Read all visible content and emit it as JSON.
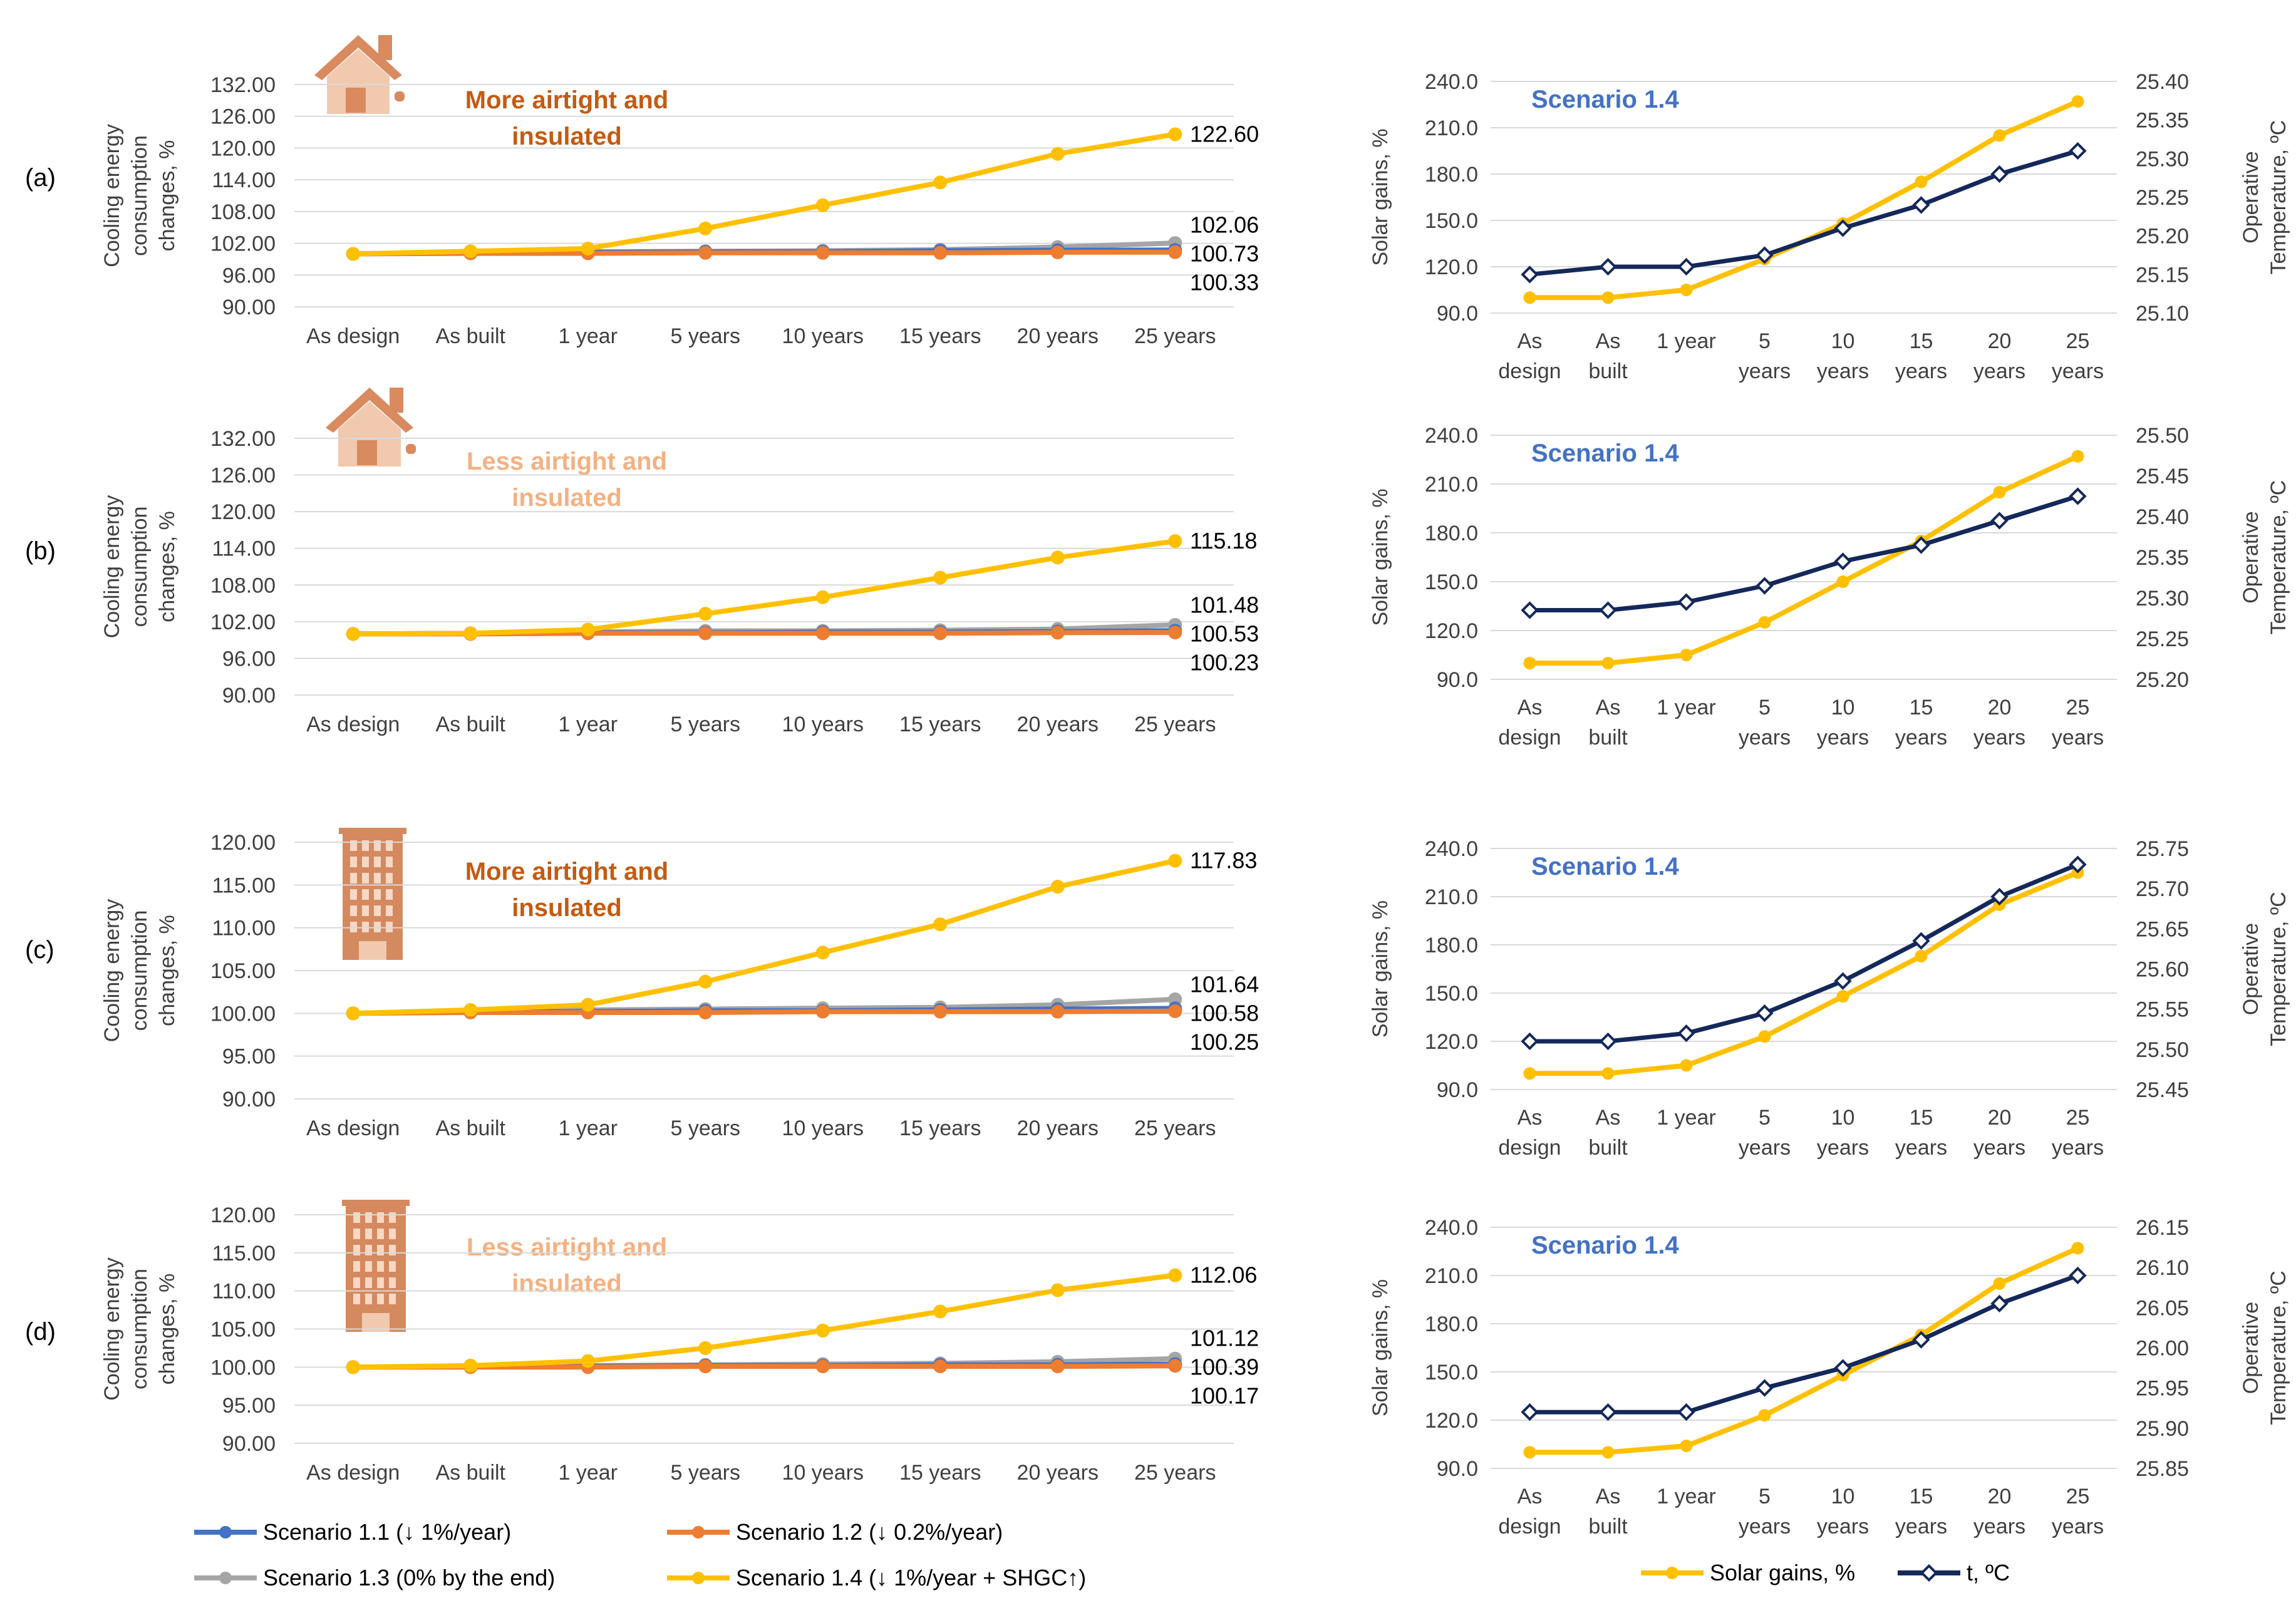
{
  "colors": {
    "s11": "#4472C4",
    "s12": "#ED7D31",
    "s13": "#A5A5A5",
    "s14": "#FFC000",
    "temp": "#14285A",
    "grid": "#D9D9D9",
    "axis_text": "#404040",
    "label_orange": "#C55A11",
    "label_light": "#F4B183",
    "scenario_blue": "#4472C4",
    "house_icon": "#D98A5F",
    "building_icon": "#D4895F"
  },
  "categories": [
    "As design",
    "As built",
    "1 year",
    "5 years",
    "10 years",
    "15 years",
    "20 years",
    "25 years"
  ],
  "right_categories": [
    [
      "As",
      "design"
    ],
    [
      "As",
      "built"
    ],
    [
      "1 year"
    ],
    [
      "5",
      "years"
    ],
    [
      "10",
      "years"
    ],
    [
      "15",
      "years"
    ],
    [
      "20",
      "years"
    ],
    [
      "25",
      "years"
    ]
  ],
  "panels": [
    {
      "id": "a",
      "label": "(a)",
      "icon": "house-icon",
      "note": [
        "More airtight and",
        "insulated"
      ],
      "note_color": "label_orange"
    },
    {
      "id": "b",
      "label": "(b)",
      "icon": "house-icon",
      "note": [
        "Less airtight and",
        "insulated"
      ],
      "note_color": "label_light"
    },
    {
      "id": "c",
      "label": "(c)",
      "icon": "building-icon",
      "note": [
        "More airtight and",
        "insulated"
      ],
      "note_color": "label_orange"
    },
    {
      "id": "d",
      "label": "(d)",
      "icon": "building-icon",
      "note": [
        "Less airtight and",
        "insulated"
      ],
      "note_color": "label_light"
    }
  ],
  "chart_data": [
    {
      "id": "left-a",
      "type": "line",
      "panel": "a",
      "ylabel": [
        "Cooling energy",
        "consumption",
        "changes, %"
      ],
      "yticks": [
        "90.00",
        "96.00",
        "102.00",
        "108.00",
        "114.00",
        "120.00",
        "126.00",
        "132.00"
      ],
      "ylim": [
        90,
        132
      ],
      "series": [
        {
          "name": "Scenario 1.1 (↓ 1%/year)",
          "color": "s11",
          "values": [
            100,
            100.3,
            100.3,
            100.4,
            100.4,
            100.6,
            100.7,
            100.73
          ]
        },
        {
          "name": "Scenario 1.2 (↓ 0.2%/year)",
          "color": "s12",
          "values": [
            100,
            100.1,
            100.1,
            100.2,
            100.2,
            100.2,
            100.3,
            100.33
          ]
        },
        {
          "name": "Scenario 1.3 (0% by the end)",
          "color": "s13",
          "values": [
            100,
            100.3,
            100.4,
            100.5,
            100.6,
            100.8,
            101.3,
            102.06
          ]
        },
        {
          "name": "Scenario 1.4 (↓ 1%/year  +  SHGC↑)",
          "color": "s14",
          "values": [
            100,
            100.5,
            101.0,
            104.8,
            109.2,
            113.5,
            118.9,
            122.6
          ]
        }
      ],
      "end_labels": [
        "122.60",
        "102.06",
        "100.73",
        "100.33"
      ]
    },
    {
      "id": "left-b",
      "type": "line",
      "panel": "b",
      "ylabel": [
        "Cooling energy",
        "consumption",
        "changes, %"
      ],
      "yticks": [
        "90.00",
        "96.00",
        "102.00",
        "108.00",
        "114.00",
        "120.00",
        "126.00",
        "132.00"
      ],
      "ylim": [
        90,
        132
      ],
      "series": [
        {
          "name": "Scenario 1.1 (↓ 1%/year)",
          "color": "s11",
          "values": [
            100,
            100.1,
            100.2,
            100.2,
            100.3,
            100.3,
            100.4,
            100.53
          ]
        },
        {
          "name": "Scenario 1.2 (↓ 0.2%/year)",
          "color": "s12",
          "values": [
            100,
            100,
            100.1,
            100.1,
            100.1,
            100.1,
            100.2,
            100.23
          ]
        },
        {
          "name": "Scenario 1.3 (0% by the end)",
          "color": "s13",
          "values": [
            100,
            100.1,
            100.3,
            100.5,
            100.5,
            100.6,
            100.8,
            101.48
          ]
        },
        {
          "name": "Scenario 1.4 (↓ 1%/year  +  SHGC↑)",
          "color": "s14",
          "values": [
            100,
            100.1,
            100.7,
            103.3,
            106.0,
            109.2,
            112.5,
            115.18
          ]
        }
      ],
      "end_labels": [
        "115.18",
        "101.48",
        "100.53",
        "100.23"
      ]
    },
    {
      "id": "left-c",
      "type": "line",
      "panel": "c",
      "ylabel": [
        "Cooling energy",
        "consumption",
        "changes, %"
      ],
      "yticks": [
        "90.00",
        "95.00",
        "100.00",
        "105.00",
        "110.00",
        "115.00",
        "120.00"
      ],
      "ylim": [
        90,
        120
      ],
      "series": [
        {
          "name": "Scenario 1.1 (↓ 1%/year)",
          "color": "s11",
          "values": [
            100,
            100.2,
            100.2,
            100.3,
            100.3,
            100.4,
            100.5,
            100.58
          ]
        },
        {
          "name": "Scenario 1.2 (↓ 0.2%/year)",
          "color": "s12",
          "values": [
            100,
            100.1,
            100.1,
            100.1,
            100.2,
            100.2,
            100.2,
            100.25
          ]
        },
        {
          "name": "Scenario 1.3 (0% by the end)",
          "color": "s13",
          "values": [
            100,
            100.3,
            100.4,
            100.5,
            100.6,
            100.7,
            101.0,
            101.64
          ]
        },
        {
          "name": "Scenario 1.4 (↓ 1%/year  +  SHGC↑)",
          "color": "s14",
          "values": [
            100,
            100.4,
            101.0,
            103.7,
            107.1,
            110.4,
            114.8,
            117.83
          ]
        }
      ],
      "end_labels": [
        "117.83",
        "101.64",
        "100.58",
        "100.25"
      ]
    },
    {
      "id": "left-d",
      "type": "line",
      "panel": "d",
      "ylabel": [
        "Cooling energy",
        "consumption",
        "changes, %"
      ],
      "yticks": [
        "90.00",
        "95.00",
        "100.00",
        "105.00",
        "110.00",
        "115.00",
        "120.00"
      ],
      "ylim": [
        90,
        120
      ],
      "series": [
        {
          "name": "Scenario 1.1 (↓ 1%/year)",
          "color": "s11",
          "values": [
            100,
            100.1,
            100.1,
            100.2,
            100.2,
            100.3,
            100.3,
            100.39
          ]
        },
        {
          "name": "Scenario 1.2 (↓ 0.2%/year)",
          "color": "s12",
          "values": [
            100,
            100,
            100,
            100.1,
            100.1,
            100.1,
            100.1,
            100.17
          ]
        },
        {
          "name": "Scenario 1.3 (0% by the end)",
          "color": "s13",
          "values": [
            100,
            100.1,
            100.2,
            100.3,
            100.4,
            100.5,
            100.7,
            101.12
          ]
        },
        {
          "name": "Scenario 1.4 (↓ 1%/year  +  SHGC↑)",
          "color": "s14",
          "values": [
            100,
            100.2,
            100.8,
            102.5,
            104.8,
            107.3,
            110.1,
            112.06
          ]
        }
      ],
      "end_labels": [
        "112.06",
        "101.12",
        "100.39",
        "100.17"
      ]
    },
    {
      "id": "right-a",
      "type": "line",
      "panel": "a",
      "dual_axis": true,
      "title": "Scenario 1.4",
      "ylabel_left": "Solar gains, %",
      "ylabel_right": [
        "Operative",
        "Temperature, ºC"
      ],
      "yticks_left": [
        "90.0",
        "120.0",
        "150.0",
        "180.0",
        "210.0",
        "240.0"
      ],
      "ylim_left": [
        90,
        240
      ],
      "yticks_right": [
        "25.10",
        "25.15",
        "25.20",
        "25.25",
        "25.30",
        "25.35",
        "25.40"
      ],
      "ylim_right": [
        25.1,
        25.4
      ],
      "solar": [
        100,
        100,
        105,
        125,
        148,
        175,
        205,
        227
      ],
      "temp": [
        25.15,
        25.16,
        25.16,
        25.175,
        25.21,
        25.24,
        25.28,
        25.31
      ]
    },
    {
      "id": "right-b",
      "type": "line",
      "panel": "b",
      "dual_axis": true,
      "title": "Scenario 1.4",
      "ylabel_left": "Solar gains, %",
      "ylabel_right": [
        "Operative",
        "Temperature, ºC"
      ],
      "yticks_left": [
        "90.0",
        "120.0",
        "150.0",
        "180.0",
        "210.0",
        "240.0"
      ],
      "ylim_left": [
        90,
        240
      ],
      "yticks_right": [
        "25.20",
        "25.25",
        "25.30",
        "25.35",
        "25.40",
        "25.45",
        "25.50"
      ],
      "ylim_right": [
        25.2,
        25.5
      ],
      "solar": [
        100,
        100,
        105,
        125,
        150,
        175,
        205,
        227
      ],
      "temp": [
        25.285,
        25.285,
        25.295,
        25.315,
        25.345,
        25.365,
        25.395,
        25.425
      ]
    },
    {
      "id": "right-c",
      "type": "line",
      "panel": "c",
      "dual_axis": true,
      "title": "Scenario 1.4",
      "ylabel_left": "Solar gains, %",
      "ylabel_right": [
        "Operative",
        "Temperature, ºC"
      ],
      "yticks_left": [
        "90.0",
        "120.0",
        "150.0",
        "180.0",
        "210.0",
        "240.0"
      ],
      "ylim_left": [
        90,
        240
      ],
      "yticks_right": [
        "25.45",
        "25.50",
        "25.55",
        "25.60",
        "25.65",
        "25.70",
        "25.75"
      ],
      "ylim_right": [
        25.45,
        25.75
      ],
      "solar": [
        100,
        100,
        105,
        123,
        148,
        173,
        205,
        225
      ],
      "temp": [
        25.51,
        25.51,
        25.52,
        25.545,
        25.585,
        25.635,
        25.69,
        25.73
      ]
    },
    {
      "id": "right-d",
      "type": "line",
      "panel": "d",
      "dual_axis": true,
      "title": "Scenario 1.4",
      "ylabel_left": "Solar gains, %",
      "ylabel_right": [
        "Operative",
        "Temperature, ºC"
      ],
      "yticks_left": [
        "90.0",
        "120.0",
        "150.0",
        "180.0",
        "210.0",
        "240.0"
      ],
      "ylim_left": [
        90,
        240
      ],
      "yticks_right": [
        "25.85",
        "25.90",
        "25.95",
        "26.00",
        "26.05",
        "26.10",
        "26.15"
      ],
      "ylim_right": [
        25.85,
        26.15
      ],
      "solar": [
        100,
        100,
        104,
        123,
        148,
        173,
        205,
        227
      ],
      "temp": [
        25.92,
        25.92,
        25.92,
        25.95,
        25.975,
        26.01,
        26.055,
        26.09
      ]
    }
  ],
  "legend_left": [
    {
      "name": "Scenario 1.1 (↓ 1%/year)",
      "color": "s11"
    },
    {
      "name": "Scenario 1.2 (↓ 0.2%/year)",
      "color": "s12"
    },
    {
      "name": "Scenario 1.3 (0% by the end)",
      "color": "s13"
    },
    {
      "name": "Scenario 1.4 (↓ 1%/year  +  SHGC↑)",
      "color": "s14"
    }
  ],
  "legend_right": [
    {
      "name": "Solar gains, %",
      "color": "s14"
    },
    {
      "name": "t, ºC",
      "color": "temp"
    }
  ]
}
